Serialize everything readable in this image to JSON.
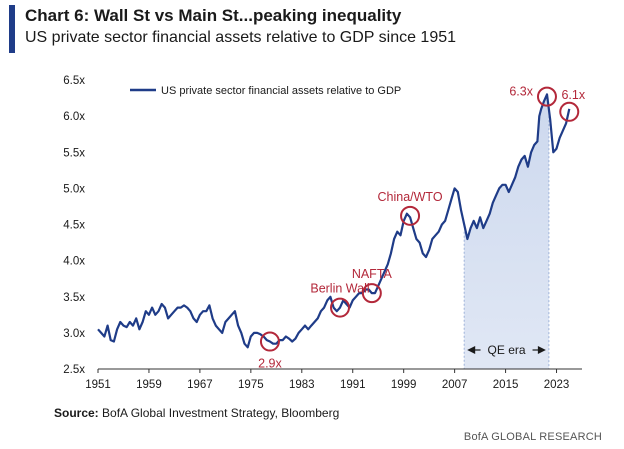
{
  "header": {
    "title": "Chart 6: Wall St vs Main St...peaking inequality",
    "subtitle": "US private sector financial assets relative to GDP since 1951"
  },
  "footer": {
    "source_label": "Source:",
    "source_text": "BofA Global Investment Strategy, Bloomberg",
    "brand": "BofA GLOBAL RESEARCH"
  },
  "colors": {
    "line": "#1f3c88",
    "annotation": "#b3283a",
    "qe_band": "#c7d4ec",
    "accent": "#1f3c88"
  },
  "chart_data": {
    "type": "line",
    "title": "",
    "xlabel": "",
    "ylabel": "",
    "xlim": [
      1951,
      2027
    ],
    "ylim": [
      2.5,
      6.5
    ],
    "x_ticks": [
      1951,
      1959,
      1967,
      1975,
      1983,
      1991,
      1999,
      2007,
      2015,
      2023
    ],
    "y_ticks": [
      {
        "v": 2.5,
        "label": "2.5x"
      },
      {
        "v": 3.0,
        "label": "3.0x"
      },
      {
        "v": 3.5,
        "label": "3.5x"
      },
      {
        "v": 4.0,
        "label": "4.0x"
      },
      {
        "v": 4.5,
        "label": "4.5x"
      },
      {
        "v": 5.0,
        "label": "5.0x"
      },
      {
        "v": 5.5,
        "label": "5.5x"
      },
      {
        "v": 6.0,
        "label": "6.0x"
      },
      {
        "v": 6.5,
        "label": "6.5x"
      }
    ],
    "legend": {
      "position": "top-left"
    },
    "series": [
      {
        "name": "US private sector financial assets relative to GDP",
        "points": [
          [
            1951.0,
            3.05
          ],
          [
            1951.5,
            3.0
          ],
          [
            1952.0,
            2.95
          ],
          [
            1952.5,
            3.1
          ],
          [
            1953.0,
            2.9
          ],
          [
            1953.5,
            2.88
          ],
          [
            1954.0,
            3.05
          ],
          [
            1954.5,
            3.15
          ],
          [
            1955.0,
            3.1
          ],
          [
            1955.5,
            3.08
          ],
          [
            1956.0,
            3.15
          ],
          [
            1956.5,
            3.1
          ],
          [
            1957.0,
            3.2
          ],
          [
            1957.5,
            3.05
          ],
          [
            1958.0,
            3.15
          ],
          [
            1958.5,
            3.3
          ],
          [
            1959.0,
            3.25
          ],
          [
            1959.5,
            3.35
          ],
          [
            1960.0,
            3.25
          ],
          [
            1960.5,
            3.3
          ],
          [
            1961.0,
            3.4
          ],
          [
            1961.5,
            3.35
          ],
          [
            1962.0,
            3.2
          ],
          [
            1962.5,
            3.25
          ],
          [
            1963.0,
            3.3
          ],
          [
            1963.5,
            3.35
          ],
          [
            1964.0,
            3.35
          ],
          [
            1964.5,
            3.38
          ],
          [
            1965.0,
            3.35
          ],
          [
            1965.5,
            3.3
          ],
          [
            1966.0,
            3.2
          ],
          [
            1966.5,
            3.15
          ],
          [
            1967.0,
            3.25
          ],
          [
            1967.5,
            3.3
          ],
          [
            1968.0,
            3.3
          ],
          [
            1968.5,
            3.38
          ],
          [
            1969.0,
            3.2
          ],
          [
            1969.5,
            3.1
          ],
          [
            1970.0,
            3.05
          ],
          [
            1970.5,
            3.0
          ],
          [
            1971.0,
            3.15
          ],
          [
            1971.5,
            3.2
          ],
          [
            1972.0,
            3.25
          ],
          [
            1972.5,
            3.3
          ],
          [
            1973.0,
            3.1
          ],
          [
            1973.5,
            3.0
          ],
          [
            1974.0,
            2.85
          ],
          [
            1974.5,
            2.8
          ],
          [
            1975.0,
            2.95
          ],
          [
            1975.5,
            3.0
          ],
          [
            1976.0,
            3.0
          ],
          [
            1976.5,
            2.98
          ],
          [
            1977.0,
            2.95
          ],
          [
            1977.5,
            2.9
          ],
          [
            1978.0,
            2.88
          ],
          [
            1978.5,
            2.85
          ],
          [
            1979.0,
            2.85
          ],
          [
            1979.5,
            2.9
          ],
          [
            1980.0,
            2.9
          ],
          [
            1980.5,
            2.95
          ],
          [
            1981.0,
            2.92
          ],
          [
            1981.5,
            2.88
          ],
          [
            1982.0,
            2.92
          ],
          [
            1982.5,
            3.0
          ],
          [
            1983.0,
            3.05
          ],
          [
            1983.5,
            3.1
          ],
          [
            1984.0,
            3.05
          ],
          [
            1984.5,
            3.1
          ],
          [
            1985.0,
            3.15
          ],
          [
            1985.5,
            3.2
          ],
          [
            1986.0,
            3.3
          ],
          [
            1986.5,
            3.35
          ],
          [
            1987.0,
            3.45
          ],
          [
            1987.5,
            3.5
          ],
          [
            1988.0,
            3.35
          ],
          [
            1988.5,
            3.3
          ],
          [
            1989.0,
            3.35
          ],
          [
            1989.5,
            3.45
          ],
          [
            1990.0,
            3.4
          ],
          [
            1990.5,
            3.35
          ],
          [
            1991.0,
            3.45
          ],
          [
            1991.5,
            3.5
          ],
          [
            1992.0,
            3.55
          ],
          [
            1992.5,
            3.55
          ],
          [
            1993.0,
            3.6
          ],
          [
            1993.5,
            3.6
          ],
          [
            1994.0,
            3.55
          ],
          [
            1994.5,
            3.55
          ],
          [
            1995.0,
            3.65
          ],
          [
            1995.5,
            3.75
          ],
          [
            1996.0,
            3.85
          ],
          [
            1996.5,
            3.95
          ],
          [
            1997.0,
            4.1
          ],
          [
            1997.5,
            4.3
          ],
          [
            1998.0,
            4.4
          ],
          [
            1998.5,
            4.35
          ],
          [
            1999.0,
            4.55
          ],
          [
            1999.5,
            4.65
          ],
          [
            2000.0,
            4.6
          ],
          [
            2000.5,
            4.45
          ],
          [
            2001.0,
            4.3
          ],
          [
            2001.5,
            4.25
          ],
          [
            2002.0,
            4.1
          ],
          [
            2002.5,
            4.05
          ],
          [
            2003.0,
            4.15
          ],
          [
            2003.5,
            4.3
          ],
          [
            2004.0,
            4.35
          ],
          [
            2004.5,
            4.4
          ],
          [
            2005.0,
            4.5
          ],
          [
            2005.5,
            4.55
          ],
          [
            2006.0,
            4.7
          ],
          [
            2006.5,
            4.85
          ],
          [
            2007.0,
            5.0
          ],
          [
            2007.5,
            4.95
          ],
          [
            2008.0,
            4.7
          ],
          [
            2008.5,
            4.5
          ],
          [
            2009.0,
            4.3
          ],
          [
            2009.5,
            4.45
          ],
          [
            2010.0,
            4.55
          ],
          [
            2010.5,
            4.45
          ],
          [
            2011.0,
            4.6
          ],
          [
            2011.5,
            4.45
          ],
          [
            2012.0,
            4.55
          ],
          [
            2012.5,
            4.65
          ],
          [
            2013.0,
            4.8
          ],
          [
            2013.5,
            4.9
          ],
          [
            2014.0,
            5.0
          ],
          [
            2014.5,
            5.05
          ],
          [
            2015.0,
            5.05
          ],
          [
            2015.5,
            4.95
          ],
          [
            2016.0,
            5.05
          ],
          [
            2016.5,
            5.15
          ],
          [
            2017.0,
            5.3
          ],
          [
            2017.5,
            5.4
          ],
          [
            2018.0,
            5.45
          ],
          [
            2018.5,
            5.3
          ],
          [
            2019.0,
            5.5
          ],
          [
            2019.5,
            5.6
          ],
          [
            2020.0,
            5.65
          ],
          [
            2020.3,
            6.0
          ],
          [
            2020.6,
            6.1
          ],
          [
            2021.0,
            6.2
          ],
          [
            2021.5,
            6.3
          ],
          [
            2022.0,
            5.95
          ],
          [
            2022.5,
            5.5
          ],
          [
            2023.0,
            5.55
          ],
          [
            2023.5,
            5.7
          ],
          [
            2024.0,
            5.8
          ],
          [
            2024.5,
            5.9
          ],
          [
            2025.0,
            6.1
          ]
        ]
      }
    ],
    "qe_band": {
      "start": 2008.5,
      "end": 2021.8,
      "label": "QE era"
    },
    "annotations": [
      {
        "label": "2.9x",
        "x": 1978.0,
        "y": 2.88,
        "label_pos": "below"
      },
      {
        "label": "Berlin Wall",
        "x": 1989.0,
        "y": 3.35,
        "label_pos": "above"
      },
      {
        "label": "NAFTA",
        "x": 1994.0,
        "y": 3.55,
        "label_pos": "above"
      },
      {
        "label": "China/WTO",
        "x": 2000.0,
        "y": 4.62,
        "label_pos": "above"
      },
      {
        "label": "6.3x",
        "x": 2021.5,
        "y": 6.27,
        "label_pos": "left"
      },
      {
        "label": "6.1x",
        "x": 2025.0,
        "y": 6.06,
        "label_pos": "above-right"
      }
    ]
  }
}
